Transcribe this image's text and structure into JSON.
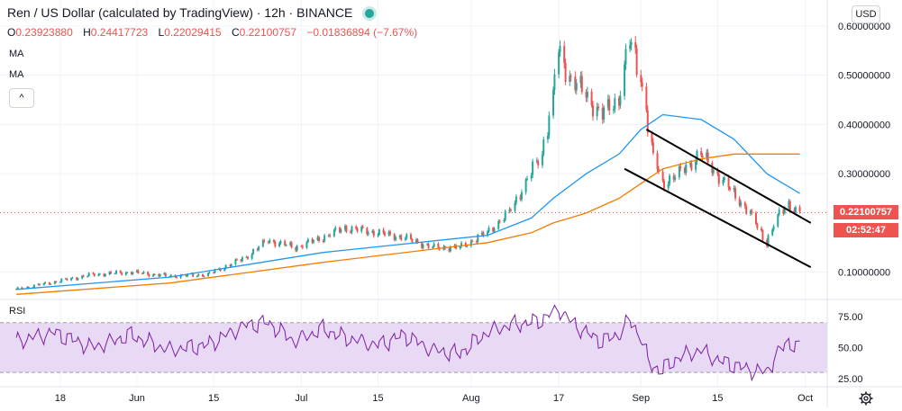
{
  "header": {
    "title": "Ren / US Dollar (calculated by TradingView) · 12h · BINANCE",
    "open_label": "O",
    "open": "0.23923880",
    "high_label": "H",
    "high": "0.24417723",
    "low_label": "L",
    "low": "0.22029415",
    "close_label": "C",
    "close": "0.22100757",
    "change": "−0.01836894 (−7.67%)",
    "ma1": "MA",
    "ma2": "MA",
    "collapse": "^"
  },
  "currency_button": "USD",
  "price_badges": {
    "last_price": "0.22100757",
    "countdown": "02:52:47"
  },
  "rsi_label": "RSI",
  "colors": {
    "up": "#26a69a",
    "down": "#ef5350",
    "ma_fast": "#2196f3",
    "ma_slow": "#f57c00",
    "rsi_line": "#7b1fa2",
    "rsi_band": "#e8d9f5",
    "channel": "#000000"
  },
  "chart_data": [
    {
      "type": "line",
      "title": "Ren / US Dollar (calculated by TradingView) · 12h · BINANCE",
      "x_tick_labels": [
        "18",
        "Jun",
        "15",
        "Jul",
        "15",
        "Aug",
        "17",
        "Sep",
        "15",
        "Oct"
      ],
      "y_tick_labels": [
        "0.60000000",
        "0.50000000",
        "0.40000000",
        "0.30000000",
        "0.10000000"
      ],
      "ylim": [
        0.05,
        0.62
      ],
      "last_price": 0.22100757,
      "series": [
        {
          "name": "close",
          "x": [
            "2020-05-10",
            "2020-05-17",
            "2020-05-24",
            "2020-05-31",
            "2020-06-07",
            "2020-06-14",
            "2020-06-21",
            "2020-06-25",
            "2020-06-30",
            "2020-07-05",
            "2020-07-09",
            "2020-07-15",
            "2020-07-20",
            "2020-07-25",
            "2020-07-30",
            "2020-08-04",
            "2020-08-08",
            "2020-08-12",
            "2020-08-14",
            "2020-08-16",
            "2020-08-17",
            "2020-08-19",
            "2020-08-22",
            "2020-08-25",
            "2020-08-28",
            "2020-08-30",
            "2020-09-01",
            "2020-09-02",
            "2020-09-03",
            "2020-09-05",
            "2020-09-08",
            "2020-09-12",
            "2020-09-15",
            "2020-09-18",
            "2020-09-21",
            "2020-09-24",
            "2020-09-26",
            "2020-09-28",
            "2020-09-30"
          ],
          "values": [
            0.065,
            0.08,
            0.095,
            0.1,
            0.092,
            0.095,
            0.13,
            0.165,
            0.15,
            0.17,
            0.19,
            0.18,
            0.17,
            0.15,
            0.15,
            0.18,
            0.22,
            0.3,
            0.34,
            0.45,
            0.55,
            0.5,
            0.46,
            0.42,
            0.45,
            0.57,
            0.5,
            0.44,
            0.35,
            0.28,
            0.3,
            0.34,
            0.3,
            0.26,
            0.22,
            0.16,
            0.21,
            0.24,
            0.22
          ]
        },
        {
          "name": "ma_fast",
          "x": [
            "2020-05-10",
            "2020-06-07",
            "2020-07-05",
            "2020-08-04",
            "2020-08-12",
            "2020-08-16",
            "2020-08-22",
            "2020-08-28",
            "2020-09-01",
            "2020-09-05",
            "2020-09-12",
            "2020-09-18",
            "2020-09-24",
            "2020-09-30"
          ],
          "values": [
            0.065,
            0.09,
            0.14,
            0.175,
            0.21,
            0.25,
            0.3,
            0.34,
            0.39,
            0.42,
            0.41,
            0.37,
            0.3,
            0.26
          ]
        },
        {
          "name": "ma_slow",
          "x": [
            "2020-05-10",
            "2020-06-07",
            "2020-07-05",
            "2020-08-04",
            "2020-08-12",
            "2020-08-16",
            "2020-08-22",
            "2020-08-28",
            "2020-09-01",
            "2020-09-05",
            "2020-09-12",
            "2020-09-18",
            "2020-09-24",
            "2020-09-30"
          ],
          "values": [
            0.055,
            0.078,
            0.12,
            0.16,
            0.18,
            0.2,
            0.22,
            0.25,
            0.28,
            0.31,
            0.33,
            0.34,
            0.34,
            0.34
          ]
        }
      ],
      "channel_lines": [
        {
          "x": [
            "2020-09-02",
            "2020-10-02"
          ],
          "values": [
            0.39,
            0.2
          ]
        },
        {
          "x": [
            "2020-08-29",
            "2020-10-02"
          ],
          "values": [
            0.31,
            0.11
          ]
        }
      ]
    },
    {
      "type": "line",
      "title": "RSI",
      "y_tick_labels": [
        "75.00",
        "50.00",
        "25.00"
      ],
      "ylim": [
        20,
        85
      ],
      "band": [
        30,
        70
      ],
      "series": [
        {
          "name": "RSI",
          "x": [
            "2020-05-10",
            "2020-05-17",
            "2020-05-24",
            "2020-05-31",
            "2020-06-07",
            "2020-06-14",
            "2020-06-21",
            "2020-06-25",
            "2020-06-30",
            "2020-07-05",
            "2020-07-09",
            "2020-07-15",
            "2020-07-20",
            "2020-07-25",
            "2020-07-30",
            "2020-08-04",
            "2020-08-08",
            "2020-08-12",
            "2020-08-14",
            "2020-08-16",
            "2020-08-17",
            "2020-08-19",
            "2020-08-22",
            "2020-08-25",
            "2020-08-28",
            "2020-08-30",
            "2020-09-01",
            "2020-09-02",
            "2020-09-03",
            "2020-09-05",
            "2020-09-08",
            "2020-09-12",
            "2020-09-15",
            "2020-09-18",
            "2020-09-21",
            "2020-09-24",
            "2020-09-26",
            "2020-09-28",
            "2020-09-30"
          ],
          "values": [
            55,
            62,
            50,
            60,
            48,
            52,
            68,
            70,
            55,
            65,
            58,
            52,
            60,
            48,
            45,
            62,
            68,
            70,
            72,
            78,
            82,
            72,
            62,
            55,
            60,
            72,
            60,
            45,
            35,
            32,
            42,
            48,
            40,
            36,
            32,
            30,
            45,
            55,
            49
          ]
        }
      ]
    }
  ]
}
